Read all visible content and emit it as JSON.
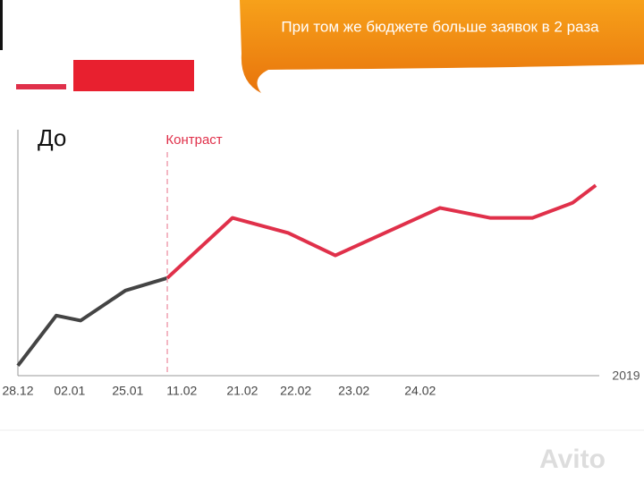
{
  "banner": "При том же бюджете больше заявок в 2 раза",
  "chart_data": {
    "type": "line",
    "x_label": "2019",
    "xlim": [
      0,
      100
    ],
    "ylim": [
      0,
      100
    ],
    "xticks": [
      {
        "value": 0,
        "label": "28.12"
      },
      {
        "value": 8.9,
        "label": "02.01"
      },
      {
        "value": 18.9,
        "label": "25.01"
      },
      {
        "value": 28.2,
        "label": "11.02"
      },
      {
        "value": 38.6,
        "label": "21.02"
      },
      {
        "value": 47.8,
        "label": "22.02"
      },
      {
        "value": 57.8,
        "label": "23.02"
      },
      {
        "value": 69.2,
        "label": "24.02"
      }
    ],
    "series": [
      {
        "name": "До",
        "color": "#444444",
        "x": [
          0,
          6.6,
          10.8,
          18.5,
          25.7
        ],
        "values": [
          4,
          24,
          22,
          34,
          39
        ]
      },
      {
        "name": "Контраст",
        "color": "#e0304a",
        "x": [
          25.7,
          36.9,
          46.5,
          54.6,
          72.6,
          81.2,
          88.5,
          95.4,
          99.4
        ],
        "values": [
          39,
          63,
          57,
          48,
          67,
          63,
          63,
          69,
          76
        ]
      }
    ]
  }
}
